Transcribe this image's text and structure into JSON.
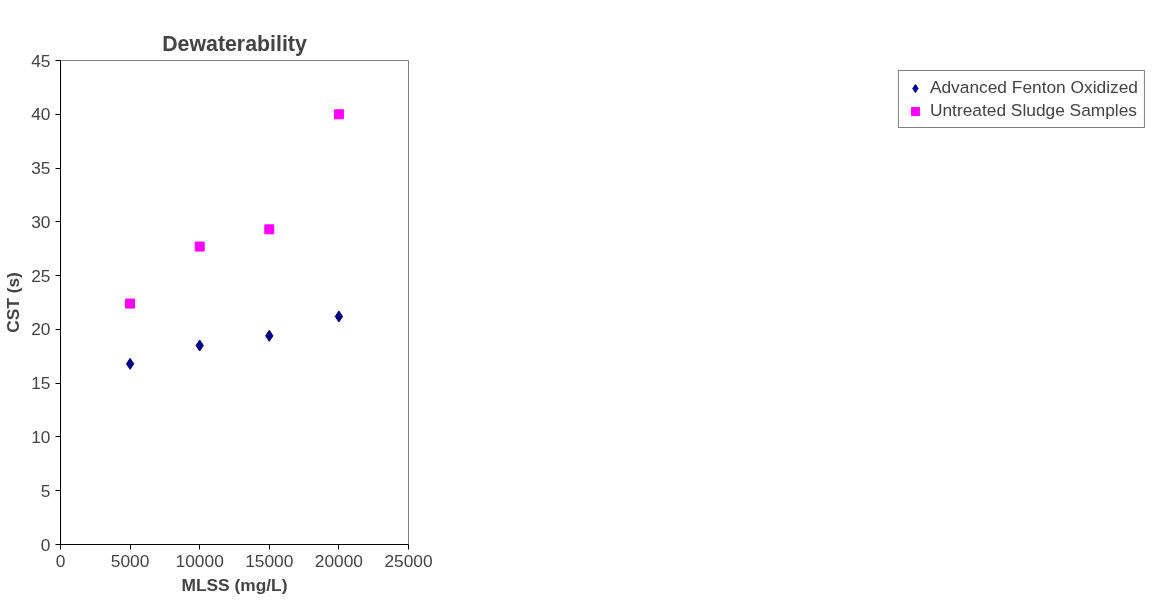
{
  "chart_data": {
    "type": "scatter",
    "title": "Dewaterability",
    "xlabel": "MLSS (mg/L)",
    "ylabel": "CST (s)",
    "x": [
      5000,
      10000,
      15000,
      20000
    ],
    "series": [
      {
        "name": "Advanced Fenton Oxidized",
        "color": "#000080",
        "marker": "diamond",
        "values": [
          16.8,
          18.5,
          19.4,
          21.2
        ]
      },
      {
        "name": "Untreated Sludge Samples",
        "color": "#ff00ff",
        "marker": "square",
        "values": [
          22.4,
          27.7,
          29.3,
          40.0
        ]
      }
    ],
    "xlim": [
      0,
      25000
    ],
    "ylim": [
      0,
      45
    ],
    "xticks": [
      0,
      5000,
      10000,
      15000,
      20000,
      25000
    ],
    "yticks": [
      0,
      5,
      10,
      15,
      20,
      25,
      30,
      35,
      40,
      45
    ],
    "grid": false,
    "legend": "right"
  }
}
